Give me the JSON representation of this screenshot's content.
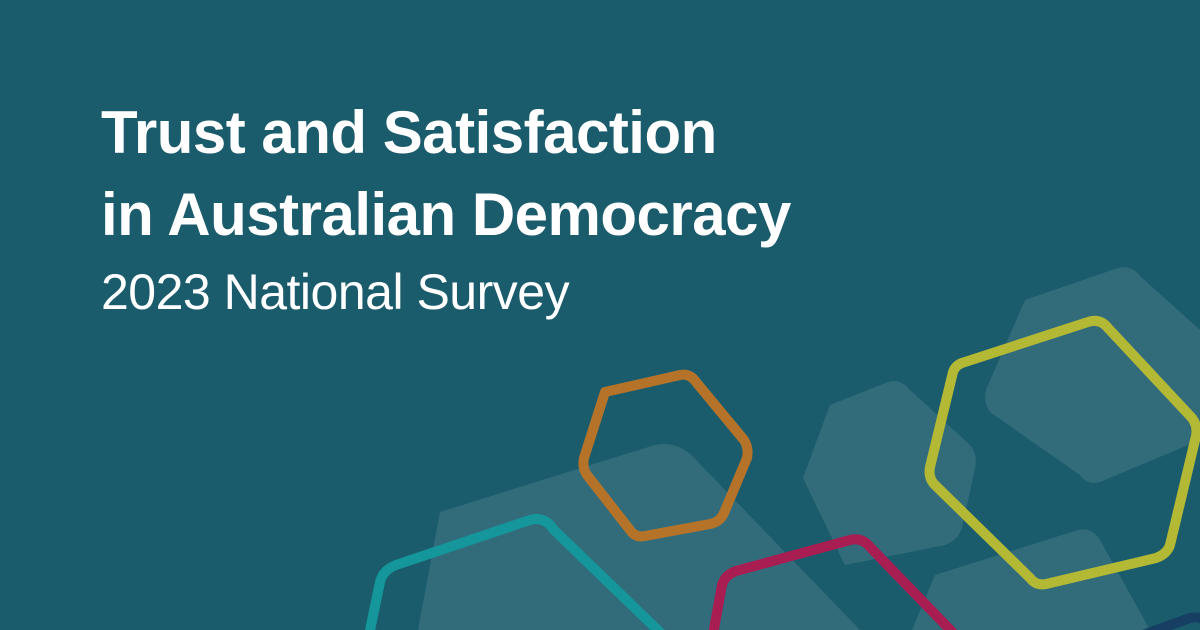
{
  "banner": {
    "title_line1": "Trust and Satisfaction",
    "title_line2": "in Australian Democracy",
    "subtitle": "2023 National Survey"
  },
  "colors": {
    "background": "#1b5c6c",
    "ghost_hexagon": "#33646f",
    "orange": "#b5732a",
    "lime": "#b3b935",
    "teal": "#14969a",
    "magenta": "#a81d52",
    "navy": "#173e63"
  }
}
